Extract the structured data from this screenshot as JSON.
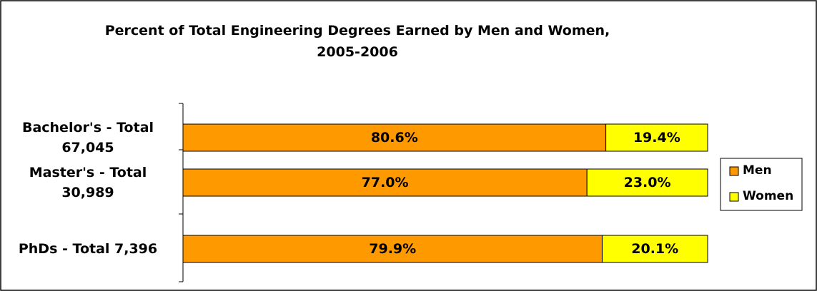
{
  "chart_data": {
    "type": "stacked-bar-horizontal",
    "title": "Percent of Total Engineering Degrees Earned by Men and Women,\n2005-2006",
    "categories": [
      "Bachelor's - Total\n67,045",
      "Master's - Total\n30,989",
      "PhDs - Total 7,396"
    ],
    "series": [
      {
        "name": "Men",
        "color": "#ff9900",
        "values": [
          80.6,
          77.0,
          79.9
        ],
        "value_labels": [
          "80.6%",
          "77.0%",
          "79.9%"
        ]
      },
      {
        "name": "Women",
        "color": "#ffff00",
        "values": [
          19.4,
          23.0,
          20.1
        ],
        "value_labels": [
          "19.4%",
          "23.0%",
          "20.1%"
        ]
      }
    ],
    "xlim": [
      0,
      100
    ],
    "legend": "right"
  }
}
